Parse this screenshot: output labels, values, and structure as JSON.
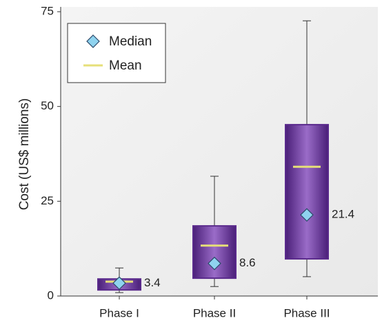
{
  "chart_data": {
    "type": "box",
    "ylabel": "Cost (US$ millions)",
    "categories": [
      "Phase I",
      "Phase II",
      "Phase III"
    ],
    "whisker_low": [
      0.9,
      2.5,
      5.1
    ],
    "q1": [
      1.6,
      4.7,
      9.8
    ],
    "median": [
      3.4,
      8.6,
      21.4
    ],
    "mean": [
      3.8,
      13.3,
      34.1
    ],
    "q3": [
      4.5,
      18.5,
      45.2
    ],
    "whisker_high": [
      7.4,
      31.6,
      72.6
    ],
    "legend": {
      "median": "Median",
      "mean": "Mean",
      "position": "upper left"
    },
    "box_color": "#5a2a8c",
    "mean_color": "#e6df78",
    "median_color": "#8fd3ef",
    "ylim": [
      0,
      75
    ],
    "yticks": [
      0,
      25,
      50,
      75
    ]
  }
}
